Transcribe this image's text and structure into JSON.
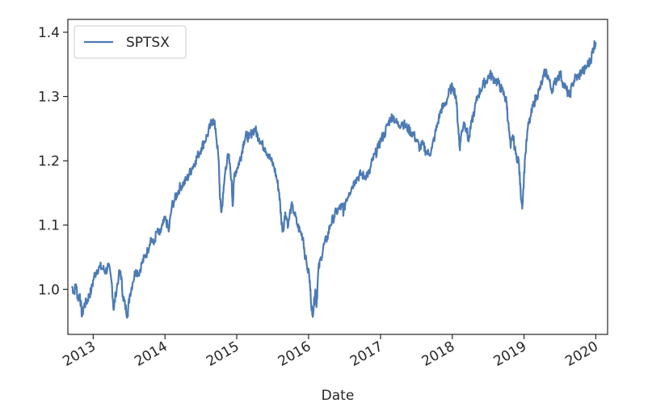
{
  "chart_data": {
    "type": "line",
    "title": "",
    "xlabel": "Date",
    "ylabel": "",
    "x_ticks": [
      "2013",
      "2014",
      "2015",
      "2016",
      "2017",
      "2018",
      "2019",
      "2020"
    ],
    "y_ticks": [
      "1.0",
      "1.1",
      "1.2",
      "1.3",
      "1.4"
    ],
    "xlim": [
      "2012-08-25",
      "2020-03-01"
    ],
    "ylim": [
      0.93,
      1.42
    ],
    "grid": false,
    "legend": {
      "position": "top-left",
      "entries": [
        "SPTSX"
      ]
    },
    "colors": {
      "series": "#4c7bb4",
      "axes": "#262626"
    },
    "series": [
      {
        "name": "SPTSX",
        "x": [
          "2012-09-15",
          "2012-09-25",
          "2012-10-05",
          "2012-10-15",
          "2012-10-25",
          "2012-11-05",
          "2012-11-15",
          "2012-11-28",
          "2012-12-10",
          "2012-12-22",
          "2013-01-05",
          "2013-01-20",
          "2013-02-05",
          "2013-02-20",
          "2013-03-05",
          "2013-03-20",
          "2013-04-05",
          "2013-04-15",
          "2013-04-25",
          "2013-05-10",
          "2013-05-20",
          "2013-06-01",
          "2013-06-12",
          "2013-06-24",
          "2013-07-05",
          "2013-07-20",
          "2013-08-05",
          "2013-08-20",
          "2013-09-05",
          "2013-09-20",
          "2013-10-05",
          "2013-10-20",
          "2013-11-05",
          "2013-11-20",
          "2013-12-05",
          "2013-12-20",
          "2014-01-05",
          "2014-01-20",
          "2014-02-05",
          "2014-02-20",
          "2014-03-05",
          "2014-03-20",
          "2014-04-05",
          "2014-04-20",
          "2014-05-05",
          "2014-05-20",
          "2014-06-05",
          "2014-06-20",
          "2014-07-05",
          "2014-07-20",
          "2014-08-05",
          "2014-08-20",
          "2014-09-02",
          "2014-09-15",
          "2014-10-01",
          "2014-10-08",
          "2014-10-15",
          "2014-10-25",
          "2014-11-05",
          "2014-11-20",
          "2014-12-05",
          "2014-12-12",
          "2014-12-20",
          "2015-01-05",
          "2015-01-15",
          "2015-01-25",
          "2015-02-05",
          "2015-02-20",
          "2015-03-05",
          "2015-03-20",
          "2015-04-05",
          "2015-04-15",
          "2015-04-25",
          "2015-05-10",
          "2015-05-25",
          "2015-06-10",
          "2015-06-25",
          "2015-07-10",
          "2015-07-25",
          "2015-08-05",
          "2015-08-15",
          "2015-08-24",
          "2015-09-05",
          "2015-09-20",
          "2015-10-05",
          "2015-10-20",
          "2015-11-05",
          "2015-11-20",
          "2015-12-05",
          "2015-12-15",
          "2016-01-05",
          "2016-01-12",
          "2016-01-20",
          "2016-01-28",
          "2016-02-05",
          "2016-02-11",
          "2016-02-20",
          "2016-03-05",
          "2016-03-20",
          "2016-04-05",
          "2016-04-20",
          "2016-05-05",
          "2016-05-20",
          "2016-06-05",
          "2016-06-20",
          "2016-06-27",
          "2016-07-10",
          "2016-07-25",
          "2016-08-10",
          "2016-08-25",
          "2016-09-10",
          "2016-09-25",
          "2016-10-10",
          "2016-10-25",
          "2016-11-05",
          "2016-11-20",
          "2016-12-05",
          "2016-12-20",
          "2017-01-05",
          "2017-01-20",
          "2017-02-05",
          "2017-02-20",
          "2017-03-05",
          "2017-03-20",
          "2017-04-05",
          "2017-04-20",
          "2017-05-05",
          "2017-05-20",
          "2017-06-05",
          "2017-06-20",
          "2017-07-05",
          "2017-07-20",
          "2017-08-05",
          "2017-08-20",
          "2017-09-05",
          "2017-09-20",
          "2017-10-05",
          "2017-10-20",
          "2017-11-05",
          "2017-11-20",
          "2017-12-05",
          "2017-12-20",
          "2018-01-05",
          "2018-01-20",
          "2018-02-01",
          "2018-02-08",
          "2018-02-15",
          "2018-03-01",
          "2018-03-15",
          "2018-03-25",
          "2018-04-10",
          "2018-04-25",
          "2018-05-10",
          "2018-05-25",
          "2018-06-10",
          "2018-06-25",
          "2018-07-10",
          "2018-07-25",
          "2018-08-10",
          "2018-08-25",
          "2018-09-10",
          "2018-09-25",
          "2018-10-05",
          "2018-10-12",
          "2018-10-25",
          "2018-11-05",
          "2018-11-20",
          "2018-12-05",
          "2018-12-15",
          "2018-12-24",
          "2019-01-05",
          "2019-01-20",
          "2019-02-05",
          "2019-02-20",
          "2019-03-05",
          "2019-03-20",
          "2019-04-05",
          "2019-04-20",
          "2019-05-05",
          "2019-05-20",
          "2019-06-05",
          "2019-06-20",
          "2019-07-05",
          "2019-07-20",
          "2019-08-05",
          "2019-08-20",
          "2019-09-05",
          "2019-09-20",
          "2019-10-05",
          "2019-10-20",
          "2019-11-05",
          "2019-11-20",
          "2019-12-05",
          "2019-12-15",
          "2019-12-24",
          "2019-12-31"
        ],
        "y": [
          1.005,
          0.995,
          1.008,
          0.985,
          0.993,
          0.958,
          0.975,
          0.98,
          0.99,
          0.998,
          1.02,
          1.03,
          1.035,
          1.032,
          1.028,
          1.036,
          1.01,
          0.968,
          0.992,
          1.02,
          1.028,
          0.99,
          0.975,
          0.96,
          0.99,
          1.01,
          1.03,
          1.025,
          1.04,
          1.05,
          1.06,
          1.08,
          1.07,
          1.09,
          1.085,
          1.1,
          1.11,
          1.09,
          1.13,
          1.14,
          1.15,
          1.16,
          1.165,
          1.17,
          1.18,
          1.19,
          1.2,
          1.21,
          1.22,
          1.23,
          1.24,
          1.255,
          1.265,
          1.25,
          1.2,
          1.14,
          1.12,
          1.15,
          1.19,
          1.21,
          1.17,
          1.13,
          1.18,
          1.19,
          1.2,
          1.21,
          1.23,
          1.24,
          1.235,
          1.245,
          1.25,
          1.24,
          1.235,
          1.225,
          1.22,
          1.21,
          1.2,
          1.19,
          1.17,
          1.15,
          1.11,
          1.09,
          1.12,
          1.1,
          1.13,
          1.12,
          1.1,
          1.09,
          1.08,
          1.05,
          1.02,
          0.99,
          0.96,
          0.975,
          1.0,
          0.975,
          1.03,
          1.05,
          1.07,
          1.08,
          1.1,
          1.11,
          1.12,
          1.125,
          1.13,
          1.12,
          1.14,
          1.15,
          1.16,
          1.17,
          1.175,
          1.18,
          1.175,
          1.18,
          1.18,
          1.2,
          1.21,
          1.22,
          1.235,
          1.24,
          1.255,
          1.265,
          1.27,
          1.26,
          1.255,
          1.26,
          1.255,
          1.25,
          1.245,
          1.24,
          1.23,
          1.22,
          1.225,
          1.215,
          1.21,
          1.22,
          1.24,
          1.26,
          1.28,
          1.285,
          1.295,
          1.31,
          1.315,
          1.3,
          1.25,
          1.22,
          1.24,
          1.26,
          1.25,
          1.23,
          1.26,
          1.28,
          1.3,
          1.31,
          1.32,
          1.325,
          1.335,
          1.33,
          1.325,
          1.32,
          1.31,
          1.3,
          1.29,
          1.26,
          1.22,
          1.24,
          1.21,
          1.2,
          1.15,
          1.13,
          1.2,
          1.25,
          1.27,
          1.29,
          1.3,
          1.31,
          1.325,
          1.34,
          1.33,
          1.31,
          1.32,
          1.33,
          1.335,
          1.32,
          1.31,
          1.3,
          1.32,
          1.33,
          1.33,
          1.34,
          1.34,
          1.35,
          1.355,
          1.37,
          1.38,
          1.385
        ]
      }
    ]
  }
}
